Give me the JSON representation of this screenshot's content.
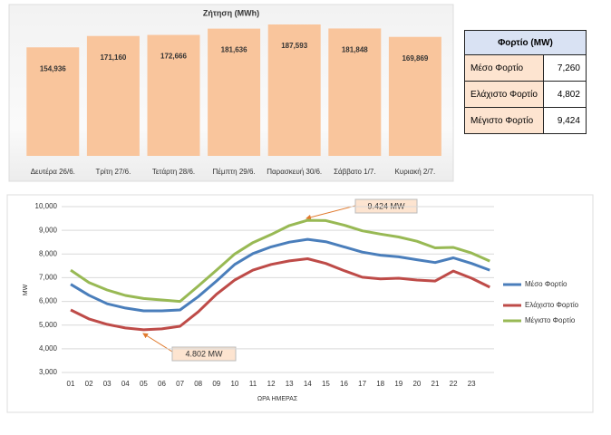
{
  "chart_data": [
    {
      "type": "bar",
      "title": "Ζήτηση (MWh)",
      "categories": [
        "Δευτέρα 26/6.",
        "Τρίτη 27/6.",
        "Τετάρτη 28/6.",
        "Πέμπτη 29/6.",
        "Παρασκευή 30/6.",
        "Σάββατο 1/7.",
        "Κυριακή 2/7."
      ],
      "values": [
        154936,
        171160,
        172666,
        181636,
        187593,
        181848,
        169869
      ],
      "value_labels": [
        "154,936",
        "171,160",
        "172,666",
        "181,636",
        "187,593",
        "181,848",
        "169,869"
      ],
      "color": "#f9c59c"
    },
    {
      "type": "line",
      "xlabel": "ΩΡΑ ΗΜΕΡΑΣ",
      "ylabel": "MW",
      "categories": [
        "01",
        "02",
        "03",
        "04",
        "05",
        "06",
        "07",
        "08",
        "09",
        "10",
        "11",
        "12",
        "13",
        "14",
        "15",
        "16",
        "17",
        "18",
        "19",
        "20",
        "21",
        "22",
        "23",
        null
      ],
      "ylim": [
        3000,
        10000
      ],
      "yticks": [
        {
          "value": 3000,
          "label": "3,000"
        },
        {
          "value": 4000,
          "label": "4,000"
        },
        {
          "value": 5000,
          "label": "5,000"
        },
        {
          "value": 6000,
          "label": "6,000"
        },
        {
          "value": 7000,
          "label": "7,000"
        },
        {
          "value": 8000,
          "label": "8,000"
        },
        {
          "value": 9000,
          "label": "9,000"
        },
        {
          "value": 10000,
          "label": "10,000"
        }
      ],
      "grid": true,
      "legend": "right",
      "series": [
        {
          "name": "Μέσο Φορτίο",
          "color": "#4a7ebb",
          "values": [
            6720,
            6260,
            5900,
            5720,
            5600,
            5600,
            5640,
            6200,
            6860,
            7560,
            8020,
            8300,
            8500,
            8620,
            8520,
            8300,
            8080,
            7950,
            7880,
            7760,
            7640,
            7840,
            7600,
            7320
          ]
        },
        {
          "name": "Ελάχιστο Φορτίο",
          "color": "#be4b48",
          "values": [
            5640,
            5260,
            5030,
            4880,
            4802,
            4840,
            4950,
            5560,
            6300,
            6900,
            7320,
            7560,
            7710,
            7800,
            7600,
            7300,
            7020,
            6950,
            6980,
            6900,
            6860,
            7280,
            6980,
            6600
          ]
        },
        {
          "name": "Μέγιστο Φορτίο",
          "color": "#98b954",
          "values": [
            7320,
            6800,
            6480,
            6250,
            6120,
            6060,
            6000,
            6650,
            7320,
            8000,
            8480,
            8820,
            9200,
            9424,
            9410,
            9220,
            8980,
            8840,
            8720,
            8540,
            8260,
            8280,
            8040,
            7700
          ]
        }
      ],
      "annotations": [
        "9.424 MW",
        "4.802 MW"
      ]
    }
  ],
  "table": {
    "header": "Φορτίο (MW)",
    "rows": [
      [
        "Μέσο Φορτίο",
        "7,260"
      ],
      [
        "Ελάχιστο Φορτίο",
        "4,802"
      ],
      [
        "Μέγιστο Φορτίο",
        "9,424"
      ]
    ]
  }
}
